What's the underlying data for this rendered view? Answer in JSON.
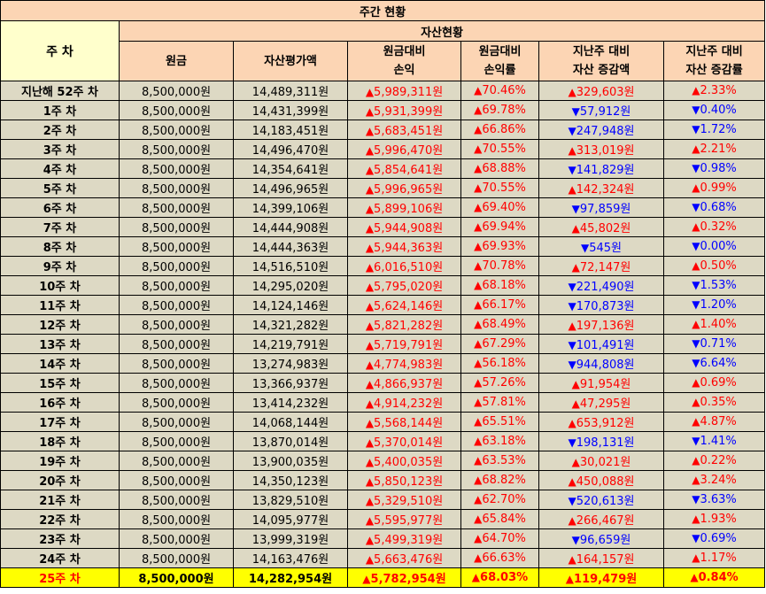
{
  "title": "주간 현황",
  "header": {
    "week": "주 차",
    "group": "자산현황",
    "columns": [
      {
        "line1": "원금",
        "line2": ""
      },
      {
        "line1": "자산평가액",
        "line2": ""
      },
      {
        "line1": "원금대비",
        "line2": "손익"
      },
      {
        "line1": "원금대비",
        "line2": "손익률"
      },
      {
        "line1": "지난주 대비",
        "line2": "자산 증감액"
      },
      {
        "line1": "지난주 대비",
        "line2": "자산 증감률"
      }
    ]
  },
  "arrows": {
    "up": "▲",
    "down": "▼"
  },
  "colors": {
    "up": "#ff0000",
    "down": "#0000ff",
    "header": "#fcd5b4",
    "week_header": "#ffffcc",
    "row": "#ddd9c4",
    "highlight": "#ffff00"
  },
  "rows": [
    {
      "week": "지난해 52주 차",
      "principal": "8,500,000원",
      "value": "14,489,311원",
      "pl": "5,989,311원",
      "pl_dir": "up",
      "pl_rate": "70.46%",
      "rate_dir": "up",
      "wchg": "329,603원",
      "wchg_dir": "up",
      "wrate": "2.33%",
      "wrate_dir": "up"
    },
    {
      "week": "1주 차",
      "principal": "8,500,000원",
      "value": "14,431,399원",
      "pl": "5,931,399원",
      "pl_dir": "up",
      "pl_rate": "69.78%",
      "rate_dir": "up",
      "wchg": "57,912원",
      "wchg_dir": "down",
      "wrate": "0.40%",
      "wrate_dir": "down"
    },
    {
      "week": "2주 차",
      "principal": "8,500,000원",
      "value": "14,183,451원",
      "pl": "5,683,451원",
      "pl_dir": "up",
      "pl_rate": "66.86%",
      "rate_dir": "up",
      "wchg": "247,948원",
      "wchg_dir": "down",
      "wrate": "1.72%",
      "wrate_dir": "down"
    },
    {
      "week": "3주 차",
      "principal": "8,500,000원",
      "value": "14,496,470원",
      "pl": "5,996,470원",
      "pl_dir": "up",
      "pl_rate": "70.55%",
      "rate_dir": "up",
      "wchg": "313,019원",
      "wchg_dir": "up",
      "wrate": "2.21%",
      "wrate_dir": "up"
    },
    {
      "week": "4주 차",
      "principal": "8,500,000원",
      "value": "14,354,641원",
      "pl": "5,854,641원",
      "pl_dir": "up",
      "pl_rate": "68.88%",
      "rate_dir": "up",
      "wchg": "141,829원",
      "wchg_dir": "down",
      "wrate": "0.98%",
      "wrate_dir": "down"
    },
    {
      "week": "5주 차",
      "principal": "8,500,000원",
      "value": "14,496,965원",
      "pl": "5,996,965원",
      "pl_dir": "up",
      "pl_rate": "70.55%",
      "rate_dir": "up",
      "wchg": "142,324원",
      "wchg_dir": "up",
      "wrate": "0.99%",
      "wrate_dir": "up"
    },
    {
      "week": "6주 차",
      "principal": "8,500,000원",
      "value": "14,399,106원",
      "pl": "5,899,106원",
      "pl_dir": "up",
      "pl_rate": "69.40%",
      "rate_dir": "up",
      "wchg": "97,859원",
      "wchg_dir": "down",
      "wrate": "0.68%",
      "wrate_dir": "down"
    },
    {
      "week": "7주 차",
      "principal": "8,500,000원",
      "value": "14,444,908원",
      "pl": "5,944,908원",
      "pl_dir": "up",
      "pl_rate": "69.94%",
      "rate_dir": "up",
      "wchg": "45,802원",
      "wchg_dir": "up",
      "wrate": "0.32%",
      "wrate_dir": "up"
    },
    {
      "week": "8주 차",
      "principal": "8,500,000원",
      "value": "14,444,363원",
      "pl": "5,944,363원",
      "pl_dir": "up",
      "pl_rate": "69.93%",
      "rate_dir": "up",
      "wchg": "545원",
      "wchg_dir": "down",
      "wrate": "0.00%",
      "wrate_dir": "down"
    },
    {
      "week": "9주 차",
      "principal": "8,500,000원",
      "value": "14,516,510원",
      "pl": "6,016,510원",
      "pl_dir": "up",
      "pl_rate": "70.78%",
      "rate_dir": "up",
      "wchg": "72,147원",
      "wchg_dir": "up",
      "wrate": "0.50%",
      "wrate_dir": "up"
    },
    {
      "week": "10주 차",
      "principal": "8,500,000원",
      "value": "14,295,020원",
      "pl": "5,795,020원",
      "pl_dir": "up",
      "pl_rate": "68.18%",
      "rate_dir": "up",
      "wchg": "221,490원",
      "wchg_dir": "down",
      "wrate": "1.53%",
      "wrate_dir": "down"
    },
    {
      "week": "11주 차",
      "principal": "8,500,000원",
      "value": "14,124,146원",
      "pl": "5,624,146원",
      "pl_dir": "up",
      "pl_rate": "66.17%",
      "rate_dir": "up",
      "wchg": "170,873원",
      "wchg_dir": "down",
      "wrate": "1.20%",
      "wrate_dir": "down"
    },
    {
      "week": "12주 차",
      "principal": "8,500,000원",
      "value": "14,321,282원",
      "pl": "5,821,282원",
      "pl_dir": "up",
      "pl_rate": "68.49%",
      "rate_dir": "up",
      "wchg": "197,136원",
      "wchg_dir": "up",
      "wrate": "1.40%",
      "wrate_dir": "up"
    },
    {
      "week": "13주 차",
      "principal": "8,500,000원",
      "value": "14,219,791원",
      "pl": "5,719,791원",
      "pl_dir": "up",
      "pl_rate": "67.29%",
      "rate_dir": "up",
      "wchg": "101,491원",
      "wchg_dir": "down",
      "wrate": "0.71%",
      "wrate_dir": "down"
    },
    {
      "week": "14주 차",
      "principal": "8,500,000원",
      "value": "13,274,983원",
      "pl": "4,774,983원",
      "pl_dir": "up",
      "pl_rate": "56.18%",
      "rate_dir": "up",
      "wchg": "944,808원",
      "wchg_dir": "down",
      "wrate": "6.64%",
      "wrate_dir": "down"
    },
    {
      "week": "15주 차",
      "principal": "8,500,000원",
      "value": "13,366,937원",
      "pl": "4,866,937원",
      "pl_dir": "up",
      "pl_rate": "57.26%",
      "rate_dir": "up",
      "wchg": "91,954원",
      "wchg_dir": "up",
      "wrate": "0.69%",
      "wrate_dir": "up"
    },
    {
      "week": "16주 차",
      "principal": "8,500,000원",
      "value": "13,414,232원",
      "pl": "4,914,232원",
      "pl_dir": "up",
      "pl_rate": "57.81%",
      "rate_dir": "up",
      "wchg": "47,295원",
      "wchg_dir": "up",
      "wrate": "0.35%",
      "wrate_dir": "up"
    },
    {
      "week": "17주 차",
      "principal": "8,500,000원",
      "value": "14,068,144원",
      "pl": "5,568,144원",
      "pl_dir": "up",
      "pl_rate": "65.51%",
      "rate_dir": "up",
      "wchg": "653,912원",
      "wchg_dir": "up",
      "wrate": "4.87%",
      "wrate_dir": "up"
    },
    {
      "week": "18주 차",
      "principal": "8,500,000원",
      "value": "13,870,014원",
      "pl": "5,370,014원",
      "pl_dir": "up",
      "pl_rate": "63.18%",
      "rate_dir": "up",
      "wchg": "198,131원",
      "wchg_dir": "down",
      "wrate": "1.41%",
      "wrate_dir": "down"
    },
    {
      "week": "19주 차",
      "principal": "8,500,000원",
      "value": "13,900,035원",
      "pl": "5,400,035원",
      "pl_dir": "up",
      "pl_rate": "63.53%",
      "rate_dir": "up",
      "wchg": "30,021원",
      "wchg_dir": "up",
      "wrate": "0.22%",
      "wrate_dir": "up"
    },
    {
      "week": "20주 차",
      "principal": "8,500,000원",
      "value": "14,350,123원",
      "pl": "5,850,123원",
      "pl_dir": "up",
      "pl_rate": "68.82%",
      "rate_dir": "up",
      "wchg": "450,088원",
      "wchg_dir": "up",
      "wrate": "3.24%",
      "wrate_dir": "up"
    },
    {
      "week": "21주 차",
      "principal": "8,500,000원",
      "value": "13,829,510원",
      "pl": "5,329,510원",
      "pl_dir": "up",
      "pl_rate": "62.70%",
      "rate_dir": "up",
      "wchg": "520,613원",
      "wchg_dir": "down",
      "wrate": "3.63%",
      "wrate_dir": "down"
    },
    {
      "week": "22주 차",
      "principal": "8,500,000원",
      "value": "14,095,977원",
      "pl": "5,595,977원",
      "pl_dir": "up",
      "pl_rate": "65.84%",
      "rate_dir": "up",
      "wchg": "266,467원",
      "wchg_dir": "up",
      "wrate": "1.93%",
      "wrate_dir": "up"
    },
    {
      "week": "23주 차",
      "principal": "8,500,000원",
      "value": "13,999,319원",
      "pl": "5,499,319원",
      "pl_dir": "up",
      "pl_rate": "64.70%",
      "rate_dir": "up",
      "wchg": "96,659원",
      "wchg_dir": "down",
      "wrate": "0.69%",
      "wrate_dir": "down"
    },
    {
      "week": "24주 차",
      "principal": "8,500,000원",
      "value": "14,163,476원",
      "pl": "5,663,476원",
      "pl_dir": "up",
      "pl_rate": "66.63%",
      "rate_dir": "up",
      "wchg": "164,157원",
      "wchg_dir": "up",
      "wrate": "1.17%",
      "wrate_dir": "up"
    },
    {
      "week": "25주 차",
      "principal": "8,500,000원",
      "value": "14,282,954원",
      "pl": "5,782,954원",
      "pl_dir": "up",
      "pl_rate": "68.03%",
      "rate_dir": "up",
      "wchg": "119,479원",
      "wchg_dir": "up",
      "wrate": "0.84%",
      "wrate_dir": "up",
      "highlight": true
    }
  ]
}
